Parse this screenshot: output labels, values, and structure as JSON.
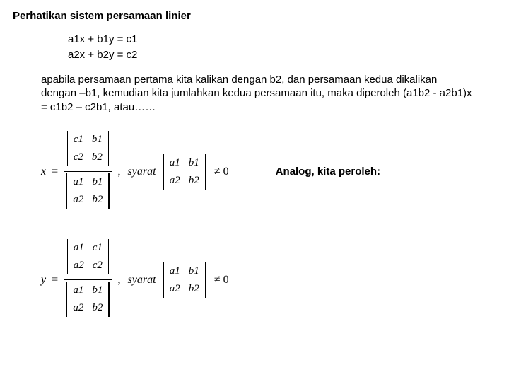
{
  "heading": "Perhatikan sistem persamaan linier",
  "eq1": "a1x + b1y = c1",
  "eq2": "a2x + b2y = c2",
  "para": "apabila persamaan pertama kita kalikan dengan b2, dan persamaan kedua dikalikan dengan –b1, kemudian kita jumlahkan kedua persamaan itu, maka diperoleh (a1b2 - a2b1)x = c1b2 – c2b1, atau……",
  "analog": "Analog, kita peroleh:",
  "x": {
    "lhs": "x",
    "eq": "=",
    "num": {
      "r1c1": "c1",
      "r1c2": "b1",
      "r2c1": "c2",
      "r2c2": "b2"
    },
    "den": {
      "r1c1": "a1",
      "r1c2": "b1",
      "r2c1": "a2",
      "r2c2": "b2"
    },
    "comma": ",",
    "syarat": "syarat",
    "cond": {
      "r1c1": "a1",
      "r1c2": "b1",
      "r2c1": "a2",
      "r2c2": "b2"
    },
    "ne": "≠ 0"
  },
  "y": {
    "lhs": "y",
    "eq": "=",
    "num": {
      "r1c1": "a1",
      "r1c2": "c1",
      "r2c1": "a2",
      "r2c2": "c2"
    },
    "den": {
      "r1c1": "a1",
      "r1c2": "b1",
      "r2c1": "a2",
      "r2c2": "b2"
    },
    "comma": ",",
    "syarat": "syarat",
    "cond": {
      "r1c1": "a1",
      "r1c2": "b1",
      "r2c1": "a2",
      "r2c2": "b2"
    },
    "ne": "≠ 0"
  },
  "colors": {
    "text": "#000000",
    "bg": "#ffffff"
  }
}
